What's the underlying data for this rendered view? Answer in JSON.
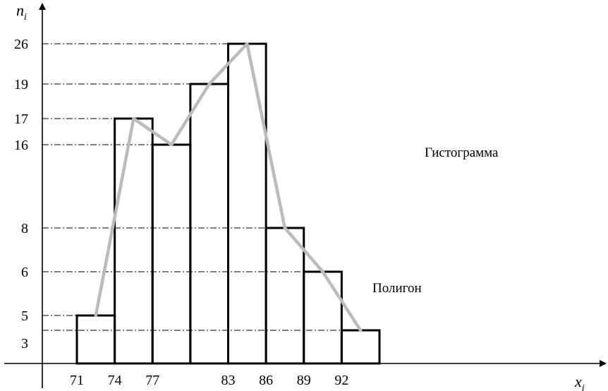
{
  "chart_data": {
    "type": "bar",
    "title": "",
    "xlabel": "x",
    "xlabel_sub": "i",
    "ylabel": "n",
    "ylabel_sub": "i",
    "x_tick_labels": [
      "71",
      "74",
      "77",
      "83",
      "86",
      "89",
      "92"
    ],
    "y_tick_labels": [
      "3",
      "5",
      "6",
      "8",
      "16",
      "17",
      "19",
      "26"
    ],
    "bins": [
      {
        "from": 71,
        "to": 74,
        "value": 5
      },
      {
        "from": 74,
        "to": 77,
        "value": 17
      },
      {
        "from": 77,
        "to": 80,
        "value": 16
      },
      {
        "from": 80,
        "to": 83,
        "value": 19
      },
      {
        "from": 83,
        "to": 86,
        "value": 26
      },
      {
        "from": 86,
        "to": 89,
        "value": 8
      },
      {
        "from": 89,
        "to": 92,
        "value": 6
      },
      {
        "from": 92,
        "to": 95,
        "value": 3
      }
    ],
    "polygon": {
      "x": [
        72.5,
        75.5,
        78.5,
        81.5,
        84.5,
        87.5,
        90.5,
        93.5
      ],
      "y": [
        5,
        17,
        16,
        19,
        26,
        8,
        6,
        3
      ],
      "color": "#bbbbbb"
    },
    "bar_outline_color": "#000000",
    "reference_lines": "dash-dot",
    "annotations": {
      "histogram": "Гистограмма",
      "polygon": "Полигон"
    }
  }
}
